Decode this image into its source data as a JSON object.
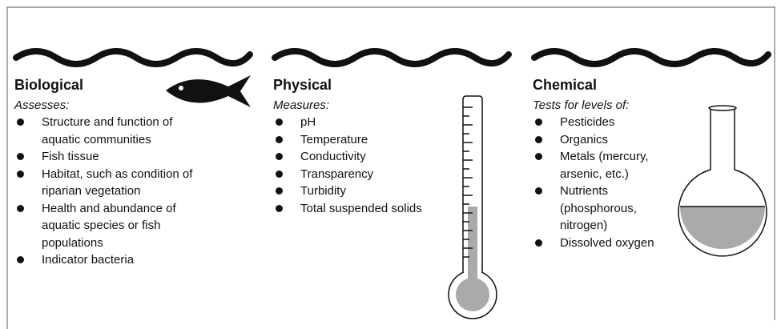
{
  "columns": [
    {
      "title": "Biological",
      "intro": "Assesses:",
      "items": [
        "Structure and function of aquatic communities",
        "Fish tissue",
        "Habitat, such as condition of riparian vegetation",
        "Health and abundance of aquatic species or fish populations",
        "Indicator bacteria"
      ]
    },
    {
      "title": "Physical",
      "intro": "Measures:",
      "items": [
        "pH",
        "Temperature",
        "Conductivity",
        "Transparency",
        "Turbidity",
        "Total suspended solids"
      ]
    },
    {
      "title": "Chemical",
      "intro": "Tests for levels of:",
      "items": [
        "Pesticides",
        "Organics",
        "Metals (mercury, arsenic, etc.)",
        "Nutrients (phosphorous, nitrogen)",
        "Dissolved oxygen"
      ]
    }
  ]
}
